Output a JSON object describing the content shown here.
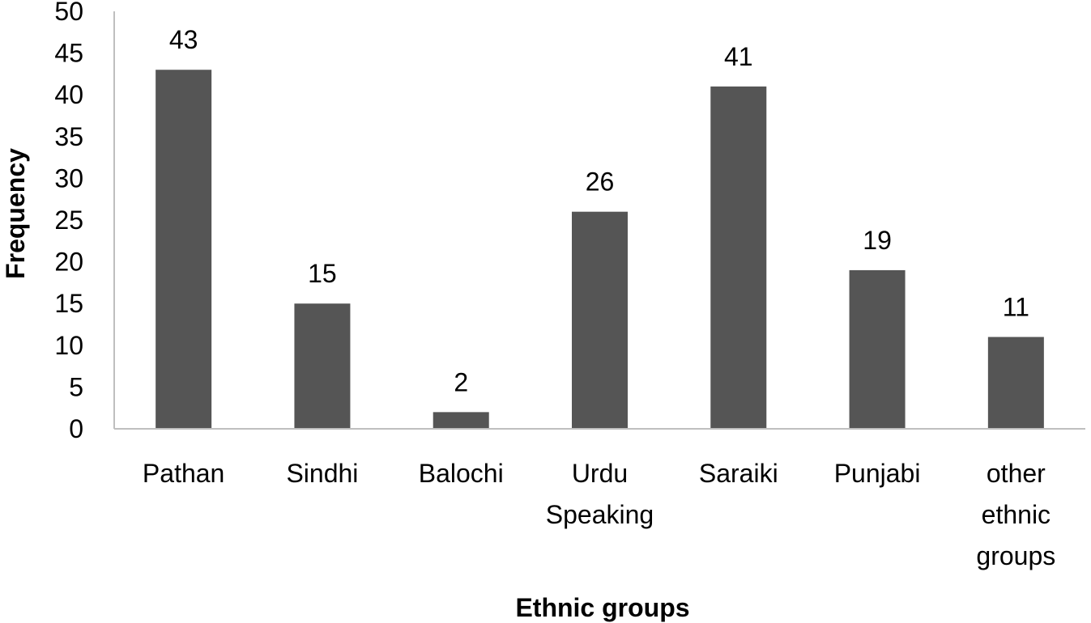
{
  "chart_data": {
    "type": "bar",
    "title": "",
    "xlabel": "Ethnic groups",
    "ylabel": "Frequency",
    "ylim": [
      0,
      50
    ],
    "yticks": [
      0,
      5,
      10,
      15,
      20,
      25,
      30,
      35,
      40,
      45,
      50
    ],
    "categories": [
      [
        "Pathan"
      ],
      [
        "Sindhi"
      ],
      [
        "Balochi"
      ],
      [
        "Urdu",
        "Speaking"
      ],
      [
        "Saraiki"
      ],
      [
        "Punjabi"
      ],
      [
        "other",
        "ethnic",
        "groups"
      ]
    ],
    "values": [
      43,
      15,
      2,
      26,
      41,
      19,
      11
    ],
    "data_labels": [
      "43",
      "15",
      "2",
      "26",
      "41",
      "19",
      "11"
    ],
    "grid": false,
    "legend": "none",
    "bar_color": "#555555",
    "axis_color": "#bfbfbf"
  }
}
